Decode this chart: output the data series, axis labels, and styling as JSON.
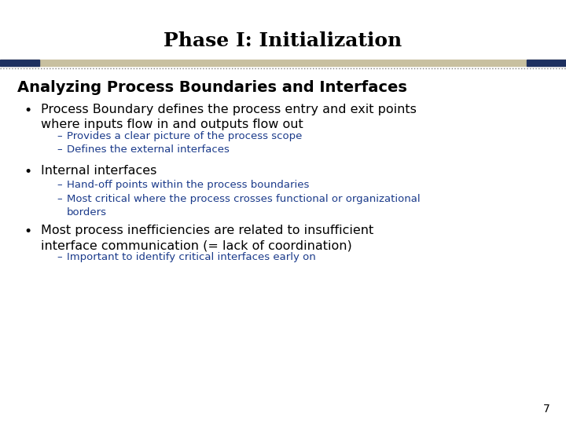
{
  "title": "Phase I: Initialization",
  "title_fontsize": 18,
  "title_color": "#000000",
  "bg_color": "#ffffff",
  "header_bar_color1": "#c8c0a0",
  "header_bar_color2": "#1e3060",
  "dotted_line_color": "#808080",
  "section_title": "Analyzing Process Boundaries and Interfaces",
  "section_title_fontsize": 14,
  "section_title_color": "#000000",
  "bullet_color": "#000000",
  "sub_bullet_color": "#1a3a8a",
  "bullet_fontsize": 11.5,
  "sub_bullet_fontsize": 9.5,
  "page_number": "7",
  "bullets": [
    {
      "text": "Process Boundary defines the process entry and exit points\nwhere inputs flow in and outputs flow out",
      "color": "#000000",
      "fontsize": 11.5,
      "sub_bullets": [
        {
          "text": "Provides a clear picture of the process scope",
          "color": "#1a3a8a",
          "fontsize": 9.5
        },
        {
          "text": "Defines the external interfaces",
          "color": "#1a3a8a",
          "fontsize": 9.5
        }
      ]
    },
    {
      "text": "Internal interfaces",
      "color": "#000000",
      "fontsize": 11.5,
      "sub_bullets": [
        {
          "text": "Hand-off points within the process boundaries",
          "color": "#1a3a8a",
          "fontsize": 9.5
        },
        {
          "text": "Most critical where the process crosses functional or organizational\nborders",
          "color": "#1a3a8a",
          "fontsize": 9.5
        }
      ]
    },
    {
      "text": "Most process inefficiencies are related to insufficient\ninterface communication (= lack of coordination)",
      "color": "#000000",
      "fontsize": 11.5,
      "sub_bullets": [
        {
          "text": "Important to identify critical interfaces early on",
          "color": "#1a3a8a",
          "fontsize": 9.5
        }
      ]
    }
  ]
}
